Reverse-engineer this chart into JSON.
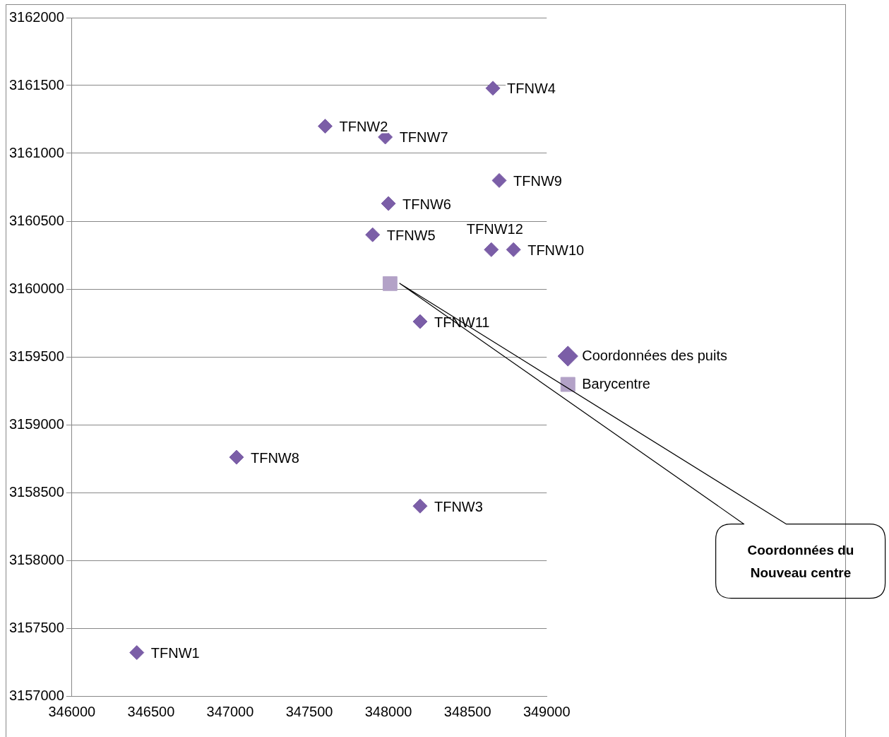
{
  "chart_data": {
    "type": "scatter",
    "xlim": [
      346000,
      349000
    ],
    "ylim": [
      3157000,
      3162000
    ],
    "xticks": [
      346000,
      346500,
      347000,
      347500,
      348000,
      348500,
      349000
    ],
    "yticks": [
      3157000,
      3157500,
      3158000,
      3158500,
      3159000,
      3159500,
      3160000,
      3160500,
      3161000,
      3161500,
      3162000
    ],
    "grid": "y",
    "legend": "right",
    "marker": "diamond",
    "series": [
      {
        "name": "Coordonnées des puits",
        "color": "#7b5ea7",
        "x": [
          346410,
          347600,
          348200,
          348660,
          347900,
          348000,
          347980,
          347040,
          348700,
          348790,
          348200,
          348650
        ],
        "values": [
          3157320,
          3161200,
          3158400,
          3161480,
          3160400,
          3160630,
          3161120,
          3158760,
          3160800,
          3160290,
          3159760,
          3160290
        ],
        "value_labels": [
          "TFNW1",
          "TFNW2",
          "TFNW3",
          "TFNW4",
          "TFNW5",
          "TFNW6",
          "TFNW7",
          "TFNW8",
          "TFNW9",
          "TFNW10",
          "TFNW11",
          "TFNW12"
        ]
      },
      {
        "name": "Barycentre",
        "color": "#b3a2c7",
        "marker": "square",
        "x": [
          348010
        ],
        "values": [
          3160040
        ]
      }
    ],
    "annotations": [
      "Coordonnées du Nouveau centre"
    ]
  }
}
